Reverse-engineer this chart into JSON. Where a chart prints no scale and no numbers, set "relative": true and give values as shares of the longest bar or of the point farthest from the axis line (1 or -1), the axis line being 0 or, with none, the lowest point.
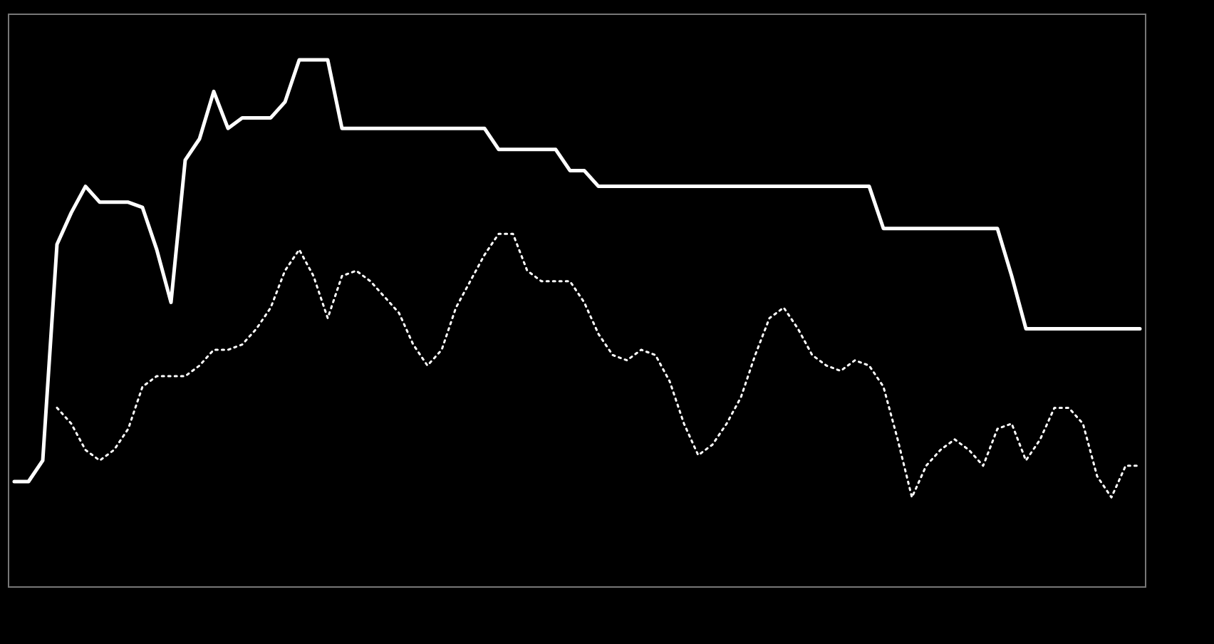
{
  "chart_data": {
    "type": "line",
    "relative": true,
    "categories": [
      null,
      null,
      null,
      null,
      null,
      null,
      null,
      null,
      null,
      null,
      null,
      null,
      null,
      null,
      null,
      null,
      null,
      null,
      null,
      null,
      null,
      null,
      null,
      null,
      null,
      null,
      null,
      null,
      null,
      null,
      null,
      null,
      null,
      null,
      null,
      null,
      null,
      null,
      null,
      null,
      null,
      null,
      null,
      null,
      null,
      null,
      null,
      null,
      null,
      null,
      null,
      null,
      null,
      null,
      null,
      null,
      null,
      null,
      null,
      null,
      null,
      null,
      null,
      null,
      null,
      null,
      null,
      null,
      null,
      null,
      null,
      null,
      null,
      null,
      null,
      null,
      null,
      null,
      null,
      null
    ],
    "series": [
      {
        "color": "#ffffff",
        "line_style": "solid",
        "values": [
          0.2,
          0.2,
          0.24,
          0.65,
          0.71,
          0.76,
          0.73,
          0.73,
          0.73,
          0.72,
          0.64,
          0.54,
          0.81,
          0.85,
          0.94,
          0.87,
          0.89,
          0.89,
          0.89,
          0.92,
          1,
          1,
          1,
          0.87,
          0.87,
          0.87,
          0.87,
          0.87,
          0.87,
          0.87,
          0.87,
          0.87,
          0.87,
          0.87,
          0.83,
          0.83,
          0.83,
          0.83,
          0.83,
          0.79,
          0.79,
          0.76,
          0.76,
          0.76,
          0.76,
          0.76,
          0.76,
          0.76,
          0.76,
          0.76,
          0.76,
          0.76,
          0.76,
          0.76,
          0.76,
          0.76,
          0.76,
          0.76,
          0.76,
          0.76,
          0.76,
          0.68,
          0.68,
          0.68,
          0.68,
          0.68,
          0.68,
          0.68,
          0.68,
          0.68,
          0.59,
          0.49,
          0.49,
          0.49,
          0.49,
          0.49,
          0.49,
          0.49,
          0.49,
          0.49
        ]
      },
      {
        "color": "#ffffff",
        "line_style": "dotted",
        "values": [
          null,
          null,
          null,
          0.34,
          0.31,
          0.26,
          0.24,
          0.26,
          0.3,
          0.38,
          0.4,
          0.4,
          0.4,
          0.42,
          0.45,
          0.45,
          0.46,
          0.49,
          0.53,
          0.6,
          0.64,
          0.59,
          0.51,
          0.59,
          0.6,
          0.58,
          0.55,
          0.52,
          0.46,
          0.42,
          0.45,
          0.53,
          0.58,
          0.63,
          0.67,
          0.67,
          0.6,
          0.58,
          0.58,
          0.58,
          0.54,
          0.48,
          0.44,
          0.43,
          0.45,
          0.44,
          0.39,
          0.31,
          0.25,
          0.27,
          0.31,
          0.36,
          0.44,
          0.51,
          0.53,
          0.49,
          0.44,
          0.42,
          0.41,
          0.43,
          0.42,
          0.38,
          0.28,
          0.17,
          0.23,
          0.26,
          0.28,
          0.26,
          0.23,
          0.3,
          0.31,
          0.24,
          0.28,
          0.34,
          0.34,
          0.31,
          0.21,
          0.17,
          0.23,
          0.23
        ]
      }
    ]
  }
}
